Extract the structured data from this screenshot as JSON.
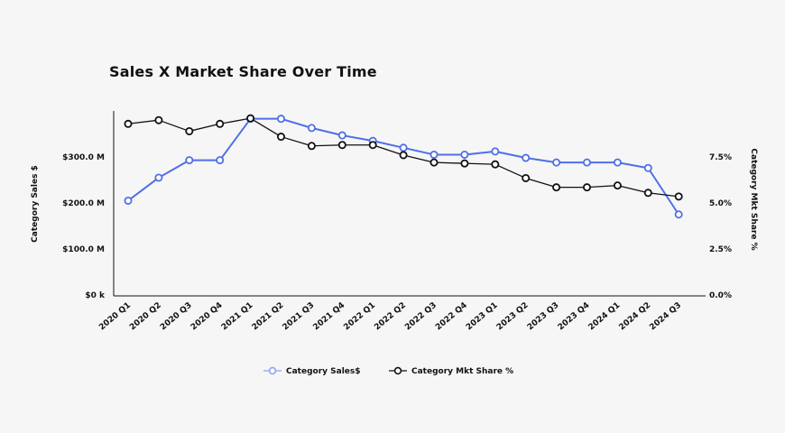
{
  "chart_data": {
    "type": "line",
    "title": "Sales X Market Share Over Time",
    "categories": [
      "2020 Q1",
      "2020 Q2",
      "2020 Q3",
      "2020 Q4",
      "2021 Q1",
      "2021 Q2",
      "2021 Q3",
      "2021 Q4",
      "2022 Q1",
      "2022 Q2",
      "2022 Q3",
      "2022 Q4",
      "2023 Q1",
      "2023 Q2",
      "2023 Q3",
      "2023 Q4",
      "2024 Q1",
      "2024 Q2",
      "2024 Q3"
    ],
    "y_left": {
      "label": "Category Sales $",
      "ylim": [
        0,
        400
      ],
      "ticks": [
        0,
        100,
        200,
        300
      ],
      "tick_labels": [
        "$0 k",
        "$100.0 M",
        "$200.0 M",
        "$300.0 M"
      ]
    },
    "y_right": {
      "label": "Category Mkt Share %",
      "ylim": [
        0,
        10
      ],
      "ticks": [
        0,
        2.5,
        5,
        7.5
      ],
      "tick_labels": [
        "0.0%",
        "2.5%",
        "5.0%",
        "7.5%"
      ]
    },
    "series": [
      {
        "name": "Category Sales$",
        "axis": "left",
        "color": "#4f6fe8",
        "values": [
          205,
          255,
          293,
          293,
          383,
          383,
          363,
          347,
          335,
          320,
          305,
          305,
          312,
          298,
          288,
          288,
          288,
          276,
          175
        ]
      },
      {
        "name": "Category Mkt Share %",
        "axis": "right",
        "color": "#111111",
        "values": [
          9.3,
          9.5,
          8.9,
          9.3,
          9.6,
          8.6,
          8.1,
          8.15,
          8.15,
          7.6,
          7.2,
          7.15,
          7.1,
          6.35,
          5.85,
          5.85,
          5.95,
          5.55,
          5.35
        ]
      }
    ],
    "grid": false,
    "legend": "bottom-center"
  }
}
